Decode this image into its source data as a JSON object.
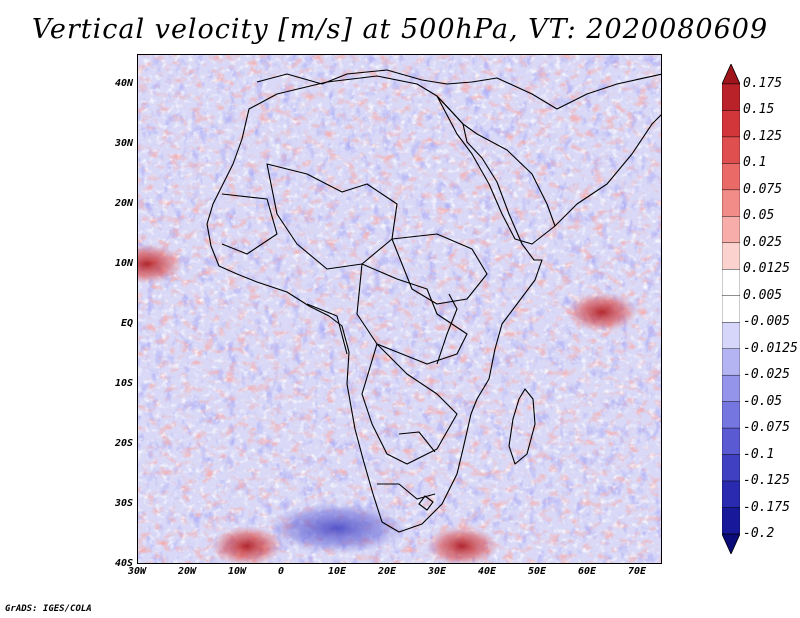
{
  "title": "Vertical velocity [m/s] at 500hPa, VT: 2020080609",
  "credit": "GrADS: IGES/COLA",
  "map": {
    "lon_range": [
      -30,
      75
    ],
    "lat_range": [
      -40,
      45
    ],
    "lat_ticks": [
      "40N",
      "30N",
      "20N",
      "10N",
      "EQ",
      "10S",
      "20S",
      "30S",
      "40S"
    ],
    "lon_ticks": [
      "30W",
      "20W",
      "10W",
      "0",
      "10E",
      "20E",
      "30E",
      "40E",
      "50E",
      "60E",
      "70E"
    ],
    "field_hotspots": [
      {
        "name": "gulf-of-guinea-updraft",
        "lon": -28,
        "lat": 10,
        "sign": "up"
      },
      {
        "name": "southern-ocean-band",
        "lon": 35,
        "lat": -37,
        "sign": "up"
      },
      {
        "name": "south-atlantic-band",
        "lon": -8,
        "lat": -37,
        "sign": "up"
      },
      {
        "name": "southern-subsidence",
        "lon": 10,
        "lat": -34,
        "sign": "down"
      },
      {
        "name": "indian-ocean-updraft",
        "lon": 63,
        "lat": 2,
        "sign": "up"
      }
    ]
  },
  "colorbar": {
    "labels": [
      "0.175",
      "0.15",
      "0.125",
      "0.1",
      "0.075",
      "0.05",
      "0.025",
      "0.0125",
      "0.005",
      "-0.005",
      "-0.0125",
      "-0.025",
      "-0.05",
      "-0.075",
      "-0.1",
      "-0.125",
      "-0.175",
      "-0.2"
    ],
    "colors": [
      "#a0141c",
      "#b92228",
      "#d2353a",
      "#e04f4f",
      "#ea6a68",
      "#f28c88",
      "#f7aeaa",
      "#fbd2ce",
      "#ffffff",
      "#ffffff",
      "#d6d6fa",
      "#b4b4f2",
      "#9494ea",
      "#7676e0",
      "#5a5ad2",
      "#4040c2",
      "#2a2ab0",
      "#18189a",
      "#0a0a78"
    ]
  }
}
